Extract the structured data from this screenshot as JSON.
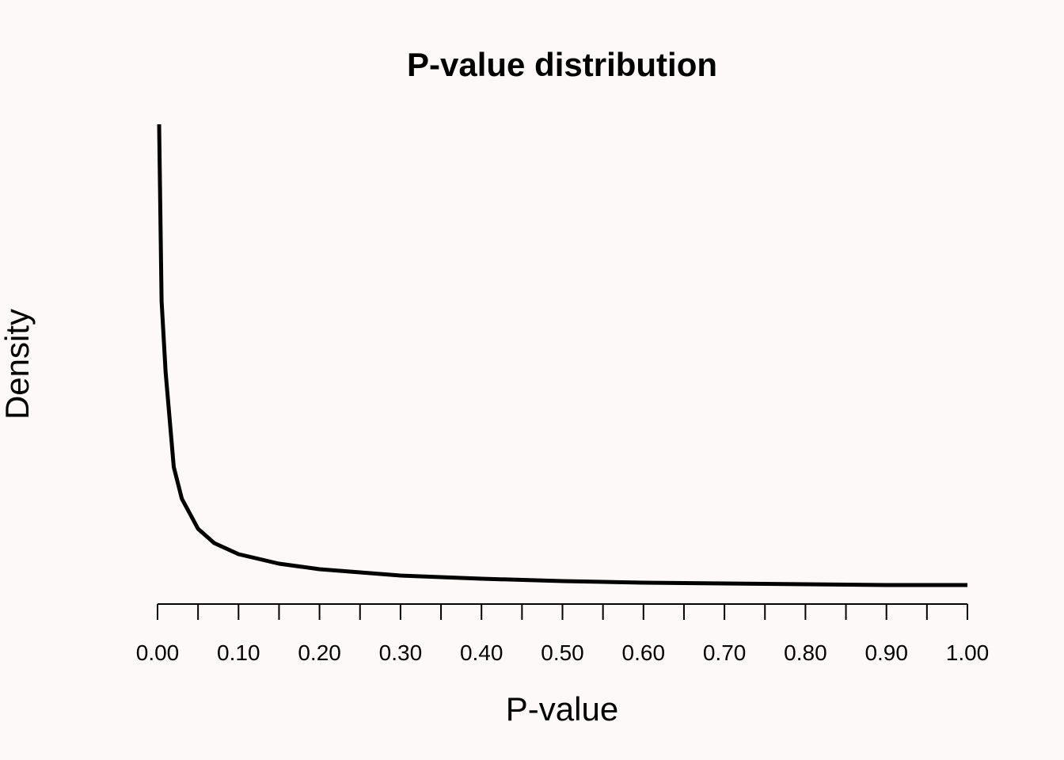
{
  "chart_data": {
    "type": "line",
    "title": "P-value distribution",
    "xlabel": "P-value",
    "ylabel": "Density",
    "xlim": [
      0,
      1
    ],
    "ylim": [
      0,
      6.06
    ],
    "y_axis_shown": false,
    "grid": false,
    "x_ticks": [
      0,
      0.05,
      0.1,
      0.15,
      0.2,
      0.25,
      0.3,
      0.35,
      0.4,
      0.45,
      0.5,
      0.55,
      0.6,
      0.65,
      0.7,
      0.75,
      0.8,
      0.85,
      0.9,
      0.95,
      1.0
    ],
    "x_tick_labels": [
      "0.00",
      "0.10",
      "0.20",
      "0.30",
      "0.40",
      "0.50",
      "0.60",
      "0.70",
      "0.80",
      "0.90",
      "1.00"
    ],
    "x_tick_label_values": [
      0,
      0.1,
      0.2,
      0.3,
      0.4,
      0.5,
      0.6,
      0.7,
      0.8,
      0.9,
      1.0
    ],
    "series": [
      {
        "name": "density",
        "color": "#000000",
        "x": [
          0.002,
          0.005,
          0.01,
          0.02,
          0.03,
          0.05,
          0.07,
          0.1,
          0.15,
          0.2,
          0.3,
          0.4,
          0.5,
          0.6,
          0.7,
          0.8,
          0.9,
          1.0
        ],
        "y": [
          6.06,
          3.83,
          2.93,
          1.73,
          1.33,
          0.95,
          0.77,
          0.63,
          0.51,
          0.44,
          0.36,
          0.32,
          0.29,
          0.27,
          0.26,
          0.25,
          0.24,
          0.24
        ]
      }
    ]
  }
}
